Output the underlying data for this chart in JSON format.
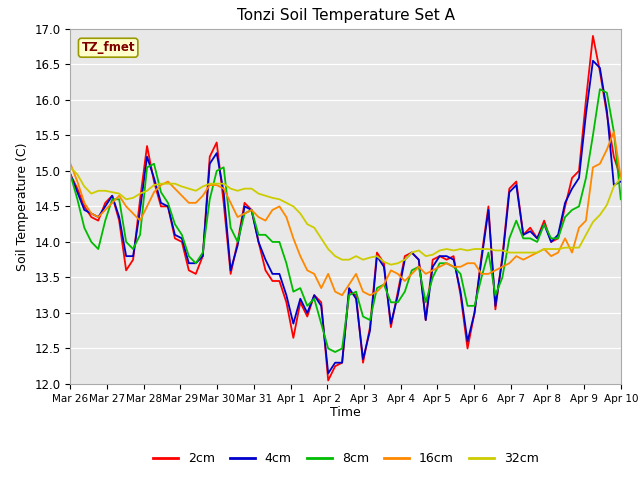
{
  "title": "Tonzi Soil Temperature Set A",
  "xlabel": "Time",
  "ylabel": "Soil Temperature (C)",
  "ylim": [
    12.0,
    17.0
  ],
  "yticks": [
    12.0,
    12.5,
    13.0,
    13.5,
    14.0,
    14.5,
    15.0,
    15.5,
    16.0,
    16.5,
    17.0
  ],
  "bg_color": "#e8e8e8",
  "label_box": "TZ_fmet",
  "label_box_color": "#ffffcc",
  "label_box_text_color": "#800000",
  "series": {
    "2cm": {
      "color": "#ff0000",
      "lw": 1.3
    },
    "4cm": {
      "color": "#0000cc",
      "lw": 1.3
    },
    "8cm": {
      "color": "#00bb00",
      "lw": 1.3
    },
    "16cm": {
      "color": "#ff8800",
      "lw": 1.3
    },
    "32cm": {
      "color": "#cccc00",
      "lw": 1.3
    }
  },
  "xtick_labels": [
    "Mar 26",
    "Mar 27",
    "Mar 28",
    "Mar 29",
    "Mar 30",
    "Mar 31",
    "Apr 1",
    "Apr 2",
    "Apr 3",
    "Apr 4",
    "Apr 5",
    "Apr 6",
    "Apr 7",
    "Apr 8",
    "Apr 9",
    "Apr 10"
  ],
  "data_2cm": [
    14.95,
    14.75,
    14.5,
    14.35,
    14.3,
    14.55,
    14.65,
    14.3,
    13.6,
    13.75,
    14.6,
    15.35,
    14.85,
    14.5,
    14.5,
    14.05,
    14.0,
    13.6,
    13.55,
    13.8,
    15.2,
    15.4,
    14.55,
    13.55,
    14.0,
    14.55,
    14.45,
    14.0,
    13.6,
    13.45,
    13.45,
    13.15,
    12.65,
    13.15,
    12.95,
    13.25,
    13.15,
    12.05,
    12.25,
    12.3,
    13.3,
    13.25,
    12.3,
    12.8,
    13.85,
    13.7,
    12.8,
    13.3,
    13.8,
    13.85,
    13.75,
    12.9,
    13.75,
    13.8,
    13.75,
    13.8,
    13.25,
    12.5,
    13.0,
    13.8,
    14.5,
    13.05,
    13.8,
    14.75,
    14.85,
    14.1,
    14.2,
    14.05,
    14.3,
    14.0,
    14.05,
    14.5,
    14.9,
    15.0,
    16.0,
    16.9,
    16.4,
    15.8,
    15.2,
    14.9
  ],
  "data_4cm": [
    14.95,
    14.7,
    14.45,
    14.4,
    14.35,
    14.5,
    14.65,
    14.35,
    13.8,
    13.8,
    14.45,
    15.2,
    14.9,
    14.55,
    14.5,
    14.1,
    14.05,
    13.7,
    13.7,
    13.8,
    15.1,
    15.25,
    14.7,
    13.6,
    13.95,
    14.5,
    14.45,
    14.0,
    13.75,
    13.55,
    13.55,
    13.25,
    12.85,
    13.2,
    13.0,
    13.25,
    13.1,
    12.15,
    12.3,
    12.3,
    13.35,
    13.2,
    12.35,
    12.75,
    13.8,
    13.65,
    12.85,
    13.25,
    13.75,
    13.85,
    13.75,
    12.9,
    13.65,
    13.8,
    13.8,
    13.75,
    13.3,
    12.6,
    13.0,
    13.75,
    14.45,
    13.1,
    13.75,
    14.7,
    14.8,
    14.1,
    14.15,
    14.05,
    14.25,
    14.0,
    14.1,
    14.55,
    14.75,
    14.9,
    15.8,
    16.55,
    16.45,
    15.85,
    14.8,
    14.85
  ],
  "data_8cm": [
    14.95,
    14.6,
    14.2,
    14.0,
    13.9,
    14.3,
    14.6,
    14.6,
    14.0,
    13.9,
    14.1,
    15.05,
    15.1,
    14.7,
    14.55,
    14.25,
    14.1,
    13.8,
    13.7,
    13.85,
    14.6,
    15.0,
    15.05,
    14.2,
    14.0,
    14.4,
    14.45,
    14.1,
    14.1,
    14.0,
    14.0,
    13.7,
    13.3,
    13.35,
    13.1,
    13.2,
    12.85,
    12.5,
    12.45,
    12.5,
    13.25,
    13.3,
    12.95,
    12.9,
    13.35,
    13.4,
    13.15,
    13.15,
    13.3,
    13.6,
    13.65,
    13.15,
    13.5,
    13.7,
    13.7,
    13.65,
    13.55,
    13.1,
    13.1,
    13.5,
    13.85,
    13.25,
    13.5,
    14.05,
    14.3,
    14.05,
    14.05,
    14.0,
    14.25,
    14.05,
    14.05,
    14.35,
    14.45,
    14.5,
    14.9,
    15.5,
    16.15,
    16.1,
    15.55,
    14.6
  ],
  "data_16cm": [
    15.1,
    14.85,
    14.55,
    14.4,
    14.35,
    14.45,
    14.55,
    14.65,
    14.5,
    14.4,
    14.3,
    14.5,
    14.7,
    14.8,
    14.85,
    14.75,
    14.65,
    14.55,
    14.55,
    14.65,
    14.8,
    14.8,
    14.75,
    14.55,
    14.35,
    14.4,
    14.45,
    14.35,
    14.3,
    14.45,
    14.5,
    14.35,
    14.05,
    13.8,
    13.6,
    13.55,
    13.35,
    13.55,
    13.3,
    13.25,
    13.4,
    13.55,
    13.3,
    13.25,
    13.3,
    13.4,
    13.6,
    13.55,
    13.45,
    13.55,
    13.65,
    13.55,
    13.6,
    13.65,
    13.7,
    13.65,
    13.65,
    13.7,
    13.7,
    13.55,
    13.55,
    13.6,
    13.65,
    13.7,
    13.8,
    13.75,
    13.8,
    13.85,
    13.9,
    13.8,
    13.85,
    14.05,
    13.85,
    14.2,
    14.3,
    15.05,
    15.1,
    15.3,
    15.55,
    14.9
  ],
  "data_32cm": [
    15.05,
    14.95,
    14.78,
    14.68,
    14.72,
    14.72,
    14.7,
    14.68,
    14.6,
    14.62,
    14.68,
    14.72,
    14.8,
    14.82,
    14.82,
    14.82,
    14.78,
    14.75,
    14.72,
    14.78,
    14.82,
    14.82,
    14.82,
    14.75,
    14.72,
    14.75,
    14.75,
    14.68,
    14.65,
    14.62,
    14.6,
    14.55,
    14.5,
    14.4,
    14.25,
    14.2,
    14.05,
    13.9,
    13.8,
    13.75,
    13.75,
    13.8,
    13.75,
    13.78,
    13.8,
    13.72,
    13.68,
    13.7,
    13.75,
    13.85,
    13.88,
    13.8,
    13.82,
    13.88,
    13.9,
    13.88,
    13.9,
    13.88,
    13.9,
    13.9,
    13.9,
    13.88,
    13.88,
    13.85,
    13.85,
    13.85,
    13.85,
    13.85,
    13.9,
    13.9,
    13.9,
    13.92,
    13.92,
    13.92,
    14.1,
    14.28,
    14.38,
    14.52,
    14.78,
    14.9
  ]
}
